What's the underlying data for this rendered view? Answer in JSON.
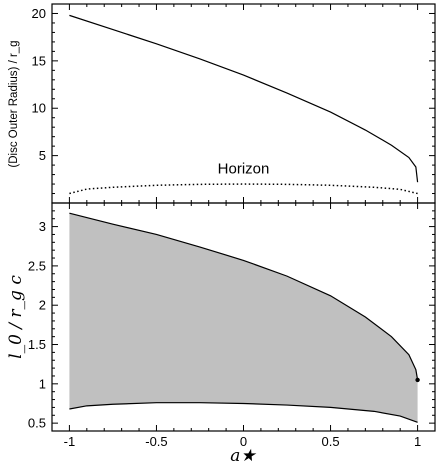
{
  "chart_data": [
    {
      "type": "line",
      "ylabel": "(Disc Outer Radius) / r_g",
      "ylim": [
        0,
        21
      ],
      "xlim": [
        -1.1,
        1.1
      ],
      "yticks": [
        5,
        10,
        15,
        20
      ],
      "grid": false,
      "annotations": [
        {
          "text": "Horizon",
          "x": 0.0,
          "y": 3.1
        }
      ],
      "series": [
        {
          "x": [
            -1.0,
            -0.75,
            -0.5,
            -0.25,
            0.0,
            0.25,
            0.5,
            0.7,
            0.85,
            0.95,
            0.99,
            1.0
          ],
          "y": [
            19.8,
            18.3,
            16.8,
            15.2,
            13.5,
            11.6,
            9.6,
            7.7,
            6.1,
            4.8,
            3.8,
            2.2
          ],
          "style": "solid"
        },
        {
          "name": "Horizon",
          "x": [
            -1.0,
            -0.9,
            -0.75,
            -0.5,
            -0.25,
            0.0,
            0.25,
            0.5,
            0.75,
            0.9,
            1.0
          ],
          "y": [
            1.0,
            1.47,
            1.66,
            1.87,
            1.97,
            2.0,
            1.97,
            1.87,
            1.66,
            1.44,
            1.0
          ],
          "style": "dotted"
        }
      ]
    },
    {
      "type": "area",
      "ylabel": "l_0 / r_g c",
      "xlabel": "a★",
      "ylim": [
        0.4,
        3.3
      ],
      "xlim": [
        -1.1,
        1.1
      ],
      "xticks": [
        -1,
        -0.5,
        0,
        0.5,
        1
      ],
      "xtick_labels": [
        "-1",
        "-0.5",
        "0",
        "0.5",
        "1"
      ],
      "yticks": [
        0.5,
        1,
        1.5,
        2,
        2.5,
        3
      ],
      "ytick_labels": [
        "0.5",
        "1",
        "1.5",
        "2",
        "2.5",
        "3"
      ],
      "grid": false,
      "fill_color": "#c0c0c0",
      "upper": {
        "x": [
          -1.0,
          -0.75,
          -0.5,
          -0.25,
          0.0,
          0.25,
          0.5,
          0.7,
          0.85,
          0.95,
          0.99,
          1.0
        ],
        "y": [
          3.17,
          3.03,
          2.9,
          2.74,
          2.57,
          2.37,
          2.12,
          1.85,
          1.6,
          1.37,
          1.18,
          1.05
        ]
      },
      "lower": {
        "x": [
          -1.0,
          -0.9,
          -0.75,
          -0.5,
          -0.25,
          0.0,
          0.25,
          0.5,
          0.75,
          0.9,
          1.0
        ],
        "y": [
          0.68,
          0.72,
          0.74,
          0.76,
          0.76,
          0.75,
          0.73,
          0.7,
          0.65,
          0.59,
          0.51
        ]
      },
      "point": {
        "x": 1.0,
        "y": 1.05
      }
    }
  ]
}
